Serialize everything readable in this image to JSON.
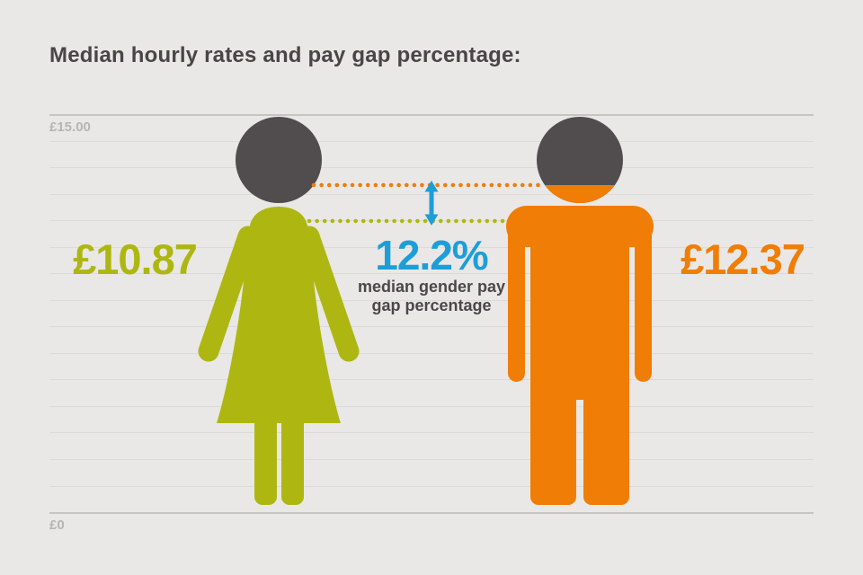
{
  "title": "Median hourly rates and pay gap percentage:",
  "axis": {
    "top_label": "£15.00",
    "bottom_label": "£0"
  },
  "female": {
    "rate": "£10.87"
  },
  "male": {
    "rate": "£12.37"
  },
  "gap": {
    "percent": "12.2%",
    "caption_line1": "median gender pay",
    "caption_line2": "gap percentage"
  },
  "colors": {
    "green": "#aeb712",
    "orange": "#f07d05",
    "blue": "#1d9ed9",
    "dark": "#514d4f",
    "title_text": "#4a4547",
    "axis_text": "#b7b5b2",
    "caption_text": "#4c4749",
    "background": "#e9e8e6",
    "gridline_minor": "#dcdbd9",
    "gridline_major": "#c6c5c3"
  },
  "chart_data": {
    "type": "bar",
    "title": "Median hourly rates and pay gap percentage:",
    "categories": [
      "Women",
      "Men"
    ],
    "series": [
      {
        "name": "Median hourly rate (£)",
        "values": [
          10.87,
          12.37
        ]
      }
    ],
    "value_labels": [
      "£10.87",
      "£12.37"
    ],
    "annotations": [
      "12.2% median gender pay gap percentage"
    ],
    "xlabel": "",
    "ylabel": "",
    "ylim": [
      0,
      15
    ],
    "y_tick_labels": [
      "£0",
      "£15.00"
    ],
    "grid": true,
    "legend_position": "none"
  }
}
